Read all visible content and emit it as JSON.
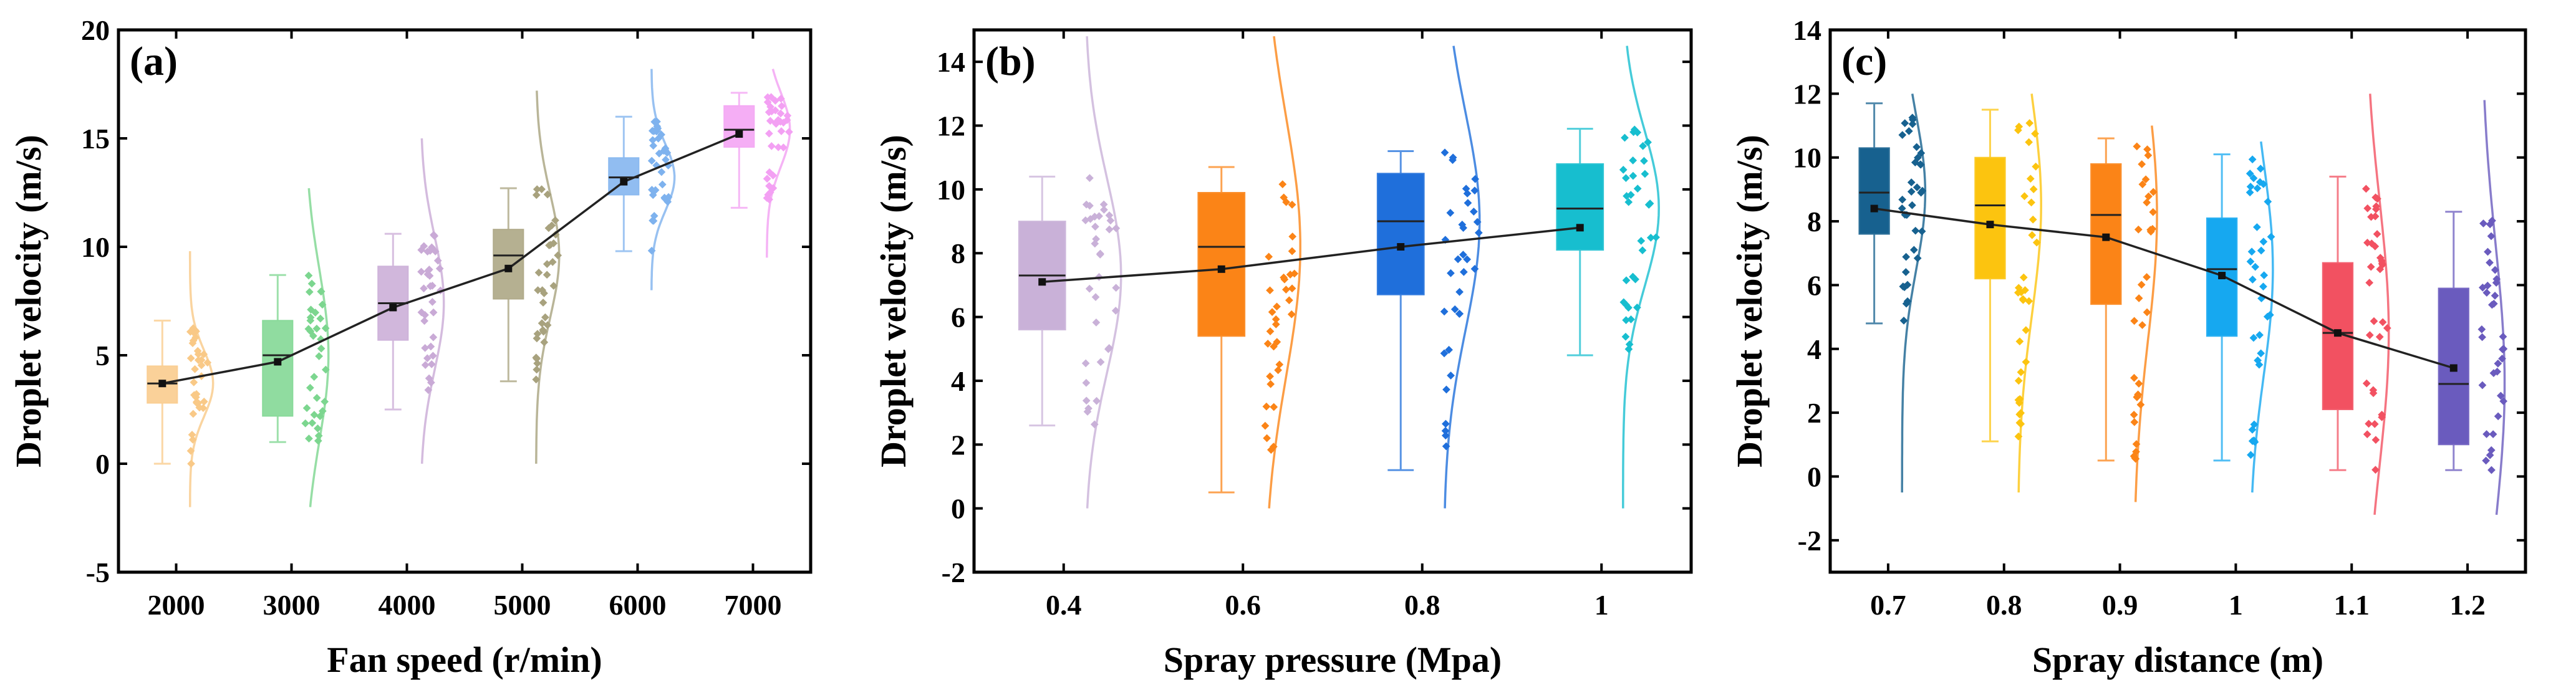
{
  "chart_data": [
    {
      "type": "box",
      "panel_label": "(a)",
      "xlabel": "Fan speed (r/min)",
      "ylabel": "Droplet velocity (m/s)",
      "ylim": [
        -5,
        20
      ],
      "yticks": [
        -5,
        0,
        5,
        10,
        15,
        20
      ],
      "categories": [
        "2000",
        "3000",
        "4000",
        "5000",
        "6000",
        "7000"
      ],
      "colors": [
        "#F9C987",
        "#7CD68F",
        "#C9AAD6",
        "#A8A27E",
        "#7EB2EE",
        "#F3A0F3"
      ],
      "boxes": [
        {
          "min": 0,
          "q1": 2.8,
          "median": 3.7,
          "q3": 4.5,
          "max": 6.6,
          "mean": 3.7
        },
        {
          "min": 1.0,
          "q1": 2.2,
          "median": 5.0,
          "q3": 6.6,
          "max": 8.7,
          "mean": 4.7
        },
        {
          "min": 2.5,
          "q1": 5.7,
          "median": 7.4,
          "q3": 9.1,
          "max": 10.6,
          "mean": 7.2
        },
        {
          "min": 3.8,
          "q1": 7.6,
          "median": 9.6,
          "q3": 10.8,
          "max": 12.7,
          "mean": 9.0
        },
        {
          "min": 9.8,
          "q1": 12.4,
          "median": 13.2,
          "q3": 14.1,
          "max": 16.0,
          "mean": 13.0
        },
        {
          "min": 11.8,
          "q1": 14.6,
          "median": 15.4,
          "q3": 16.5,
          "max": 17.1,
          "mean": 15.2
        }
      ],
      "dist_range": [
        [
          -2,
          9.8
        ],
        [
          -2,
          12.7
        ],
        [
          0,
          15
        ],
        [
          0,
          17.2
        ],
        [
          8,
          18.2
        ],
        [
          9.5,
          18.2
        ]
      ]
    },
    {
      "type": "box",
      "panel_label": "(b)",
      "xlabel": "Spray pressure (Mpa)",
      "ylabel": "Droplet velocity (m/s)",
      "ylim": [
        -2,
        15
      ],
      "yticks": [
        -2,
        0,
        2,
        4,
        6,
        8,
        10,
        12,
        14
      ],
      "categories": [
        "0.4",
        "0.6",
        "0.8",
        "1"
      ],
      "colors": [
        "#C9B1D8",
        "#FB8417",
        "#1F6FDB",
        "#17BECF"
      ],
      "boxes": [
        {
          "min": 2.6,
          "q1": 5.6,
          "median": 7.3,
          "q3": 9.0,
          "max": 10.4,
          "mean": 7.1
        },
        {
          "min": 0.5,
          "q1": 5.4,
          "median": 8.2,
          "q3": 9.9,
          "max": 10.7,
          "mean": 7.5
        },
        {
          "min": 1.2,
          "q1": 6.7,
          "median": 9.0,
          "q3": 10.5,
          "max": 11.2,
          "mean": 8.2
        },
        {
          "min": 4.8,
          "q1": 8.1,
          "median": 9.4,
          "q3": 10.8,
          "max": 11.9,
          "mean": 8.8
        }
      ],
      "dist_range": [
        [
          0,
          14.8
        ],
        [
          0,
          14.8
        ],
        [
          0,
          14.5
        ],
        [
          0,
          14.5
        ]
      ]
    },
    {
      "type": "box",
      "panel_label": "(c)",
      "xlabel": "Spray distance (m)",
      "ylabel": "Droplet velocity (m/s)",
      "ylim": [
        -3,
        14
      ],
      "yticks": [
        -2,
        0,
        2,
        4,
        6,
        8,
        10,
        12,
        14
      ],
      "categories": [
        "0.7",
        "0.8",
        "0.9",
        "1",
        "1.1",
        "1.2"
      ],
      "colors": [
        "#17618F",
        "#FCC40F",
        "#FB8417",
        "#16A8F0",
        "#F25161",
        "#6A5BBE"
      ],
      "boxes": [
        {
          "min": 4.8,
          "q1": 7.6,
          "median": 8.9,
          "q3": 10.3,
          "max": 11.7,
          "mean": 8.4
        },
        {
          "min": 1.1,
          "q1": 6.2,
          "median": 8.5,
          "q3": 10.0,
          "max": 11.5,
          "mean": 7.9
        },
        {
          "min": 0.5,
          "q1": 5.4,
          "median": 8.2,
          "q3": 9.8,
          "max": 10.6,
          "mean": 7.5
        },
        {
          "min": 0.5,
          "q1": 4.4,
          "median": 6.5,
          "q3": 8.1,
          "max": 10.1,
          "mean": 6.3
        },
        {
          "min": 0.2,
          "q1": 2.1,
          "median": 4.5,
          "q3": 6.7,
          "max": 9.4,
          "mean": 4.5
        },
        {
          "min": 0.2,
          "q1": 1.0,
          "median": 2.9,
          "q3": 5.9,
          "max": 8.3,
          "mean": 3.4
        }
      ],
      "dist_range": [
        [
          -0.5,
          12
        ],
        [
          -0.5,
          12
        ],
        [
          -0.8,
          11
        ],
        [
          -0.5,
          10.5
        ],
        [
          -1.2,
          12
        ],
        [
          -1.2,
          11.8
        ]
      ]
    }
  ]
}
